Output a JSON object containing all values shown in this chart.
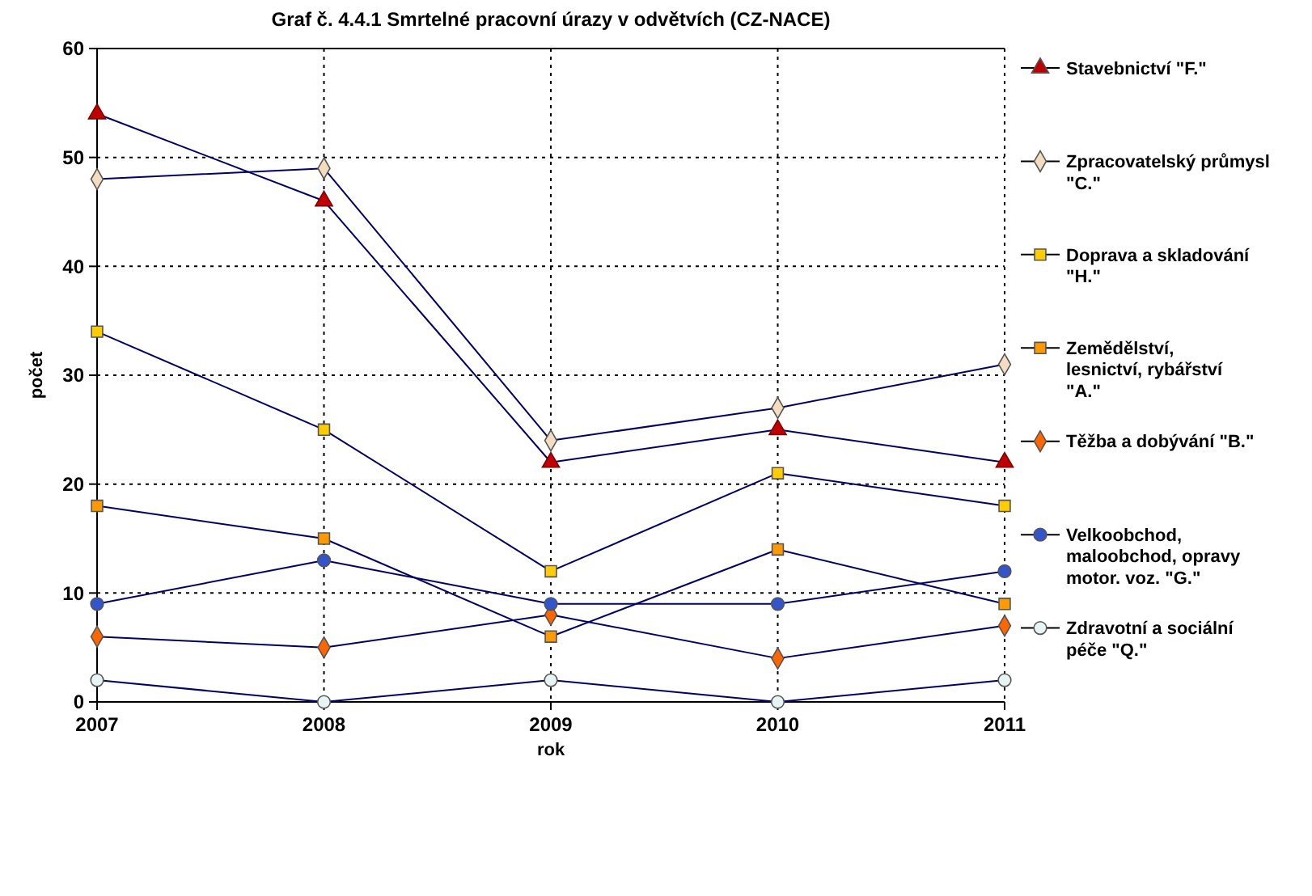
{
  "chart_data": {
    "type": "line",
    "title": "Graf č. 4.4.1  Smrtelné pracovní úrazy v odvětvích (CZ-NACE)",
    "xlabel": "rok",
    "ylabel": "počet",
    "x": [
      2007,
      2008,
      2009,
      2010,
      2011
    ],
    "xlim": [
      2007,
      2011
    ],
    "xticks": [
      2007,
      2008,
      2009,
      2010,
      2011
    ],
    "ylim": [
      0,
      60
    ],
    "yticks": [
      0,
      10,
      20,
      30,
      40,
      50,
      60
    ],
    "grid": true,
    "legend": "right",
    "series": [
      {
        "name": "Stavebnictví \"F.\"",
        "color": "#c00000",
        "marker": "triangle",
        "values": [
          54,
          46,
          22,
          25,
          22
        ]
      },
      {
        "name": "Zpracovatelský průmysl \"C.\"",
        "color": "#f3dcc0",
        "marker": "diamond",
        "values": [
          48,
          49,
          24,
          27,
          31
        ]
      },
      {
        "name": "Doprava a skladování \"H.\"",
        "color": "#ffcc00",
        "marker": "square",
        "values": [
          34,
          25,
          12,
          21,
          18
        ]
      },
      {
        "name": "Zemědělství, lesnictví, rybářství \"A.\"",
        "color": "#ff9900",
        "marker": "square",
        "values": [
          18,
          15,
          6,
          14,
          9
        ]
      },
      {
        "name": "Těžba a dobývání \"B.\"",
        "color": "#ff6600",
        "marker": "diamond",
        "values": [
          6,
          5,
          8,
          4,
          7
        ]
      },
      {
        "name": "Velkoobchod, maloobchod, opravy motor. voz. \"G.\"",
        "color": "#3355cc",
        "marker": "circle",
        "values": [
          9,
          13,
          9,
          9,
          12
        ]
      },
      {
        "name": "Zdravotní a sociální péče \"Q.\"",
        "color": "#e6f4f4",
        "marker": "circle",
        "values": [
          2,
          0,
          2,
          0,
          2
        ]
      }
    ]
  }
}
